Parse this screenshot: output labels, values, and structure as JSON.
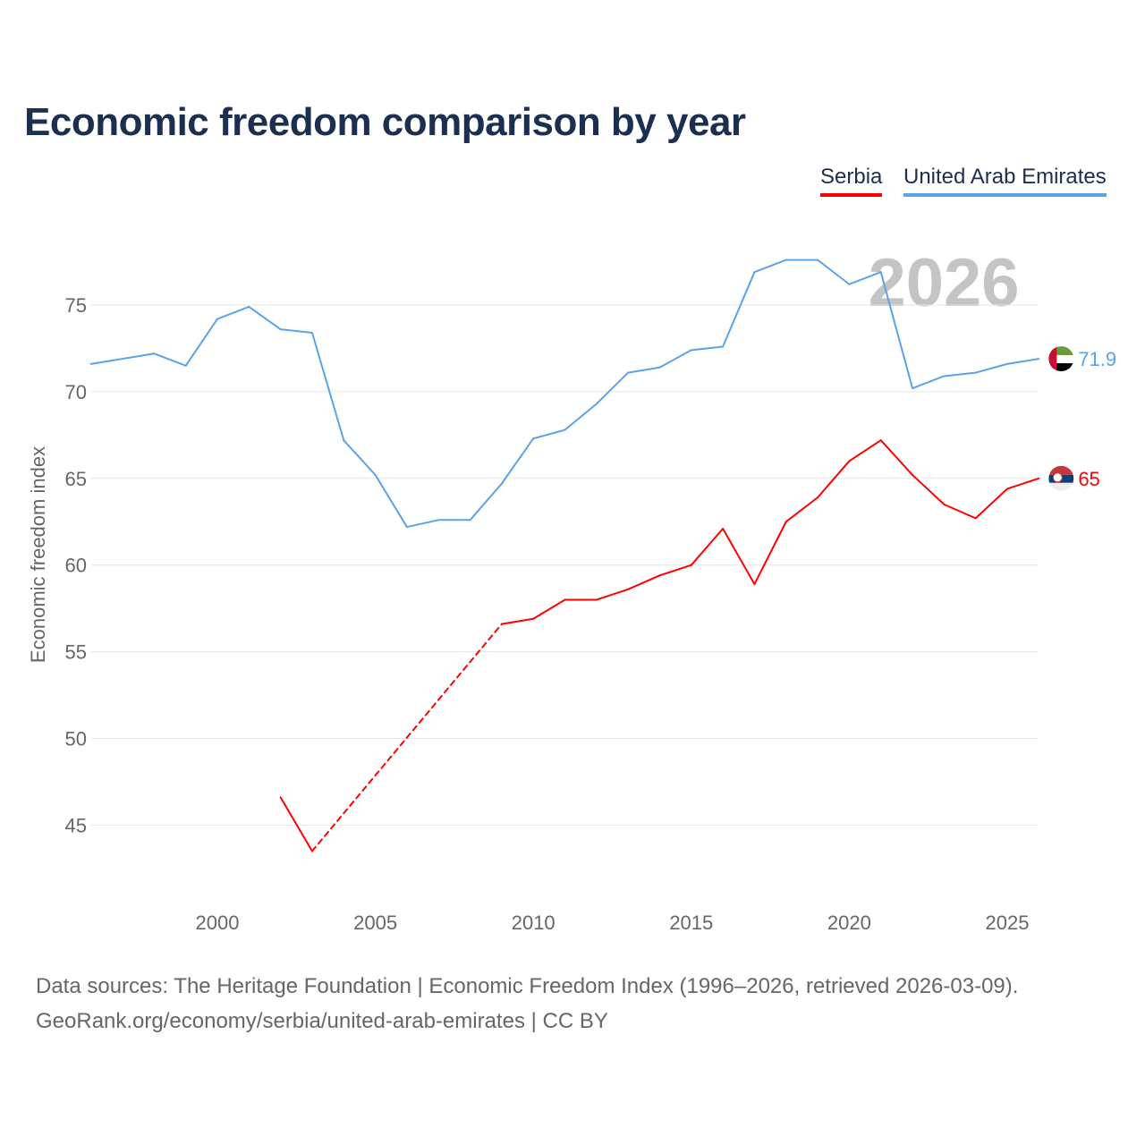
{
  "title": "Economic freedom comparison by year",
  "legend": [
    {
      "label": "Serbia",
      "color": "#ff0000"
    },
    {
      "label": "United Arab Emirates",
      "color": "#5ba3e8"
    }
  ],
  "watermark_year": "2026",
  "footer": {
    "line1": "Data sources: The Heritage Foundation | Economic Freedom Index (1996–2026, retrieved 2026-03-09).",
    "line2": "GeoRank.org/economy/serbia/united-arab-emirates | CC BY"
  },
  "chart_data": {
    "type": "line",
    "title": "Economic freedom comparison by year",
    "xlabel": "",
    "ylabel": "Economic freedom index",
    "xlim": [
      1996,
      2026
    ],
    "ylim": [
      41,
      80
    ],
    "xticks": [
      "2000",
      "2005",
      "2010",
      "2015",
      "2020",
      "2025"
    ],
    "yticks": [
      "45",
      "50",
      "55",
      "60",
      "65",
      "70",
      "75"
    ],
    "grid": true,
    "legend_position": "top-right",
    "series": [
      {
        "name": "Serbia",
        "color": "#ff0000",
        "end_label": "65",
        "dashed_gap": [
          2003,
          2009
        ],
        "points": [
          [
            2002,
            46.6
          ],
          [
            2003,
            43.5
          ],
          [
            2009,
            56.6
          ],
          [
            2010,
            56.9
          ],
          [
            2011,
            58.0
          ],
          [
            2012,
            58.0
          ],
          [
            2013,
            58.6
          ],
          [
            2014,
            59.4
          ],
          [
            2015,
            60.0
          ],
          [
            2016,
            62.1
          ],
          [
            2017,
            58.9
          ],
          [
            2018,
            62.5
          ],
          [
            2019,
            63.9
          ],
          [
            2020,
            66.0
          ],
          [
            2021,
            67.2
          ],
          [
            2022,
            65.2
          ],
          [
            2023,
            63.5
          ],
          [
            2024,
            62.7
          ],
          [
            2025,
            64.4
          ],
          [
            2026,
            65.0
          ]
        ]
      },
      {
        "name": "United Arab Emirates",
        "color": "#5ba3e8",
        "end_label": "71.9",
        "points": [
          [
            1996,
            71.6
          ],
          [
            1998,
            72.2
          ],
          [
            1999,
            71.5
          ],
          [
            2000,
            74.2
          ],
          [
            2001,
            74.9
          ],
          [
            2002,
            73.6
          ],
          [
            2003,
            73.4
          ],
          [
            2004,
            67.2
          ],
          [
            2005,
            65.2
          ],
          [
            2006,
            62.2
          ],
          [
            2007,
            62.6
          ],
          [
            2008,
            62.6
          ],
          [
            2009,
            64.7
          ],
          [
            2010,
            67.3
          ],
          [
            2011,
            67.8
          ],
          [
            2012,
            69.3
          ],
          [
            2013,
            71.1
          ],
          [
            2014,
            71.4
          ],
          [
            2015,
            72.4
          ],
          [
            2016,
            72.6
          ],
          [
            2017,
            76.9
          ],
          [
            2018,
            77.6
          ],
          [
            2019,
            77.6
          ],
          [
            2020,
            76.2
          ],
          [
            2021,
            76.9
          ],
          [
            2022,
            70.2
          ],
          [
            2023,
            70.9
          ],
          [
            2024,
            71.1
          ],
          [
            2025,
            71.6
          ],
          [
            2026,
            71.9
          ]
        ]
      }
    ]
  }
}
